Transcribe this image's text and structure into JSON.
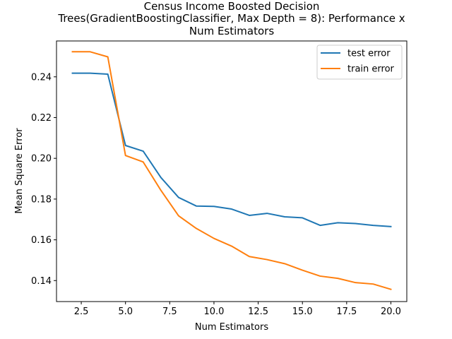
{
  "chart_data": {
    "type": "line",
    "title": "Census Income Boosted Decision Trees(GradientBoostingClassifier, Max Depth = 8): Performance x Num Estimators",
    "title_lines": [
      "Census Income Boosted Decision",
      "Trees(GradientBoostingClassifier, Max Depth = 8): Performance x",
      "Num Estimators"
    ],
    "xlabel": "Num Estimators",
    "ylabel": "Mean Square Error",
    "xlim": [
      1.1,
      20.9
    ],
    "ylim": [
      0.1297,
      0.2576
    ],
    "x_ticks": [
      2.5,
      5.0,
      7.5,
      10.0,
      12.5,
      15.0,
      17.5,
      20.0
    ],
    "x_tick_labels": [
      "2.5",
      "5.0",
      "7.5",
      "10.0",
      "12.5",
      "15.0",
      "17.5",
      "20.0"
    ],
    "y_ticks": [
      0.14,
      0.16,
      0.18,
      0.2,
      0.22,
      0.24
    ],
    "y_tick_labels": [
      "0.14",
      "0.16",
      "0.18",
      "0.20",
      "0.22",
      "0.24"
    ],
    "grid": false,
    "legend_position": "top-right",
    "x": [
      2,
      3,
      4,
      5,
      6,
      7,
      8,
      9,
      10,
      11,
      12,
      13,
      14,
      15,
      16,
      17,
      18,
      19,
      20
    ],
    "series": [
      {
        "name": "test error",
        "color": "#1f77b4",
        "values": [
          0.2418,
          0.2418,
          0.2413,
          0.2063,
          0.2035,
          0.1906,
          0.1808,
          0.1766,
          0.1764,
          0.1751,
          0.172,
          0.173,
          0.1713,
          0.1708,
          0.1671,
          0.1684,
          0.168,
          0.1671,
          0.1665
        ]
      },
      {
        "name": "train error",
        "color": "#ff7f0e",
        "values": [
          0.2523,
          0.2523,
          0.2498,
          0.2014,
          0.1982,
          0.1843,
          0.1718,
          0.1656,
          0.1607,
          0.1569,
          0.1518,
          0.1503,
          0.1483,
          0.1451,
          0.1422,
          0.1411,
          0.139,
          0.1383,
          0.1357
        ]
      }
    ]
  }
}
